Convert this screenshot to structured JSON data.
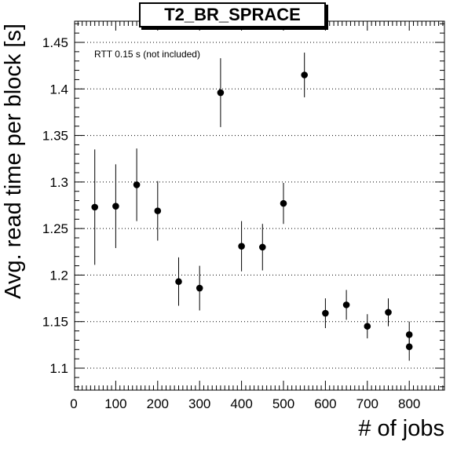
{
  "chart_data": {
    "type": "scatter",
    "title": "T2_BR_SPRACE",
    "xlabel": "# of jobs",
    "ylabel": "Avg. read time per block [s]",
    "annotation": "RTT 0.15 s (not included)",
    "xlim": [
      0,
      880
    ],
    "ylim": [
      1.077,
      1.474
    ],
    "xticks": [
      0,
      100,
      200,
      300,
      400,
      500,
      600,
      700,
      800
    ],
    "yticks": [
      1.1,
      1.15,
      1.2,
      1.25,
      1.3,
      1.35,
      1.4,
      1.45
    ],
    "ytick_labels": [
      "1.1",
      "1.15",
      "1.2",
      "1.25",
      "1.3",
      "1.35",
      "1.4",
      "1.45"
    ],
    "grid": "horizontal dotted",
    "legend": "none",
    "points": [
      {
        "x": 50,
        "y": 1.273,
        "err": 0.062
      },
      {
        "x": 100,
        "y": 1.274,
        "err": 0.045
      },
      {
        "x": 150,
        "y": 1.297,
        "err": 0.039
      },
      {
        "x": 200,
        "y": 1.269,
        "err": 0.032
      },
      {
        "x": 250,
        "y": 1.193,
        "err": 0.026
      },
      {
        "x": 300,
        "y": 1.186,
        "err": 0.024
      },
      {
        "x": 350,
        "y": 1.396,
        "err": 0.037
      },
      {
        "x": 400,
        "y": 1.231,
        "err": 0.027
      },
      {
        "x": 450,
        "y": 1.23,
        "err": 0.025
      },
      {
        "x": 500,
        "y": 1.277,
        "err": 0.022
      },
      {
        "x": 550,
        "y": 1.415,
        "err": 0.024
      },
      {
        "x": 600,
        "y": 1.159,
        "err": 0.016
      },
      {
        "x": 650,
        "y": 1.168,
        "err": 0.016
      },
      {
        "x": 700,
        "y": 1.145,
        "err": 0.013
      },
      {
        "x": 750,
        "y": 1.16,
        "err": 0.015
      },
      {
        "x": 800,
        "y": 1.136,
        "err": 0.014
      },
      {
        "x": 800,
        "y": 1.123,
        "err": 0.015
      }
    ]
  }
}
